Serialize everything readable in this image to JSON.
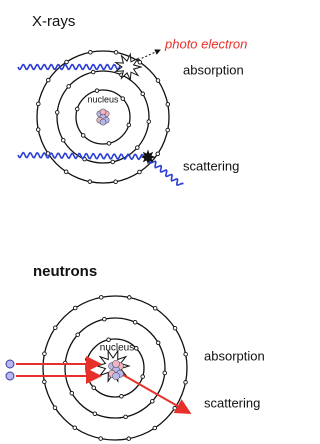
{
  "xrays": {
    "title": "X-rays",
    "photo_electron": "photo electron",
    "absorption": "absorption",
    "nucleus": "nucleus",
    "scattering": "scattering"
  },
  "neutrons": {
    "title": "neutrons",
    "nucleus": "nucleus",
    "absorption": "absorption",
    "scattering": "scattering"
  }
}
